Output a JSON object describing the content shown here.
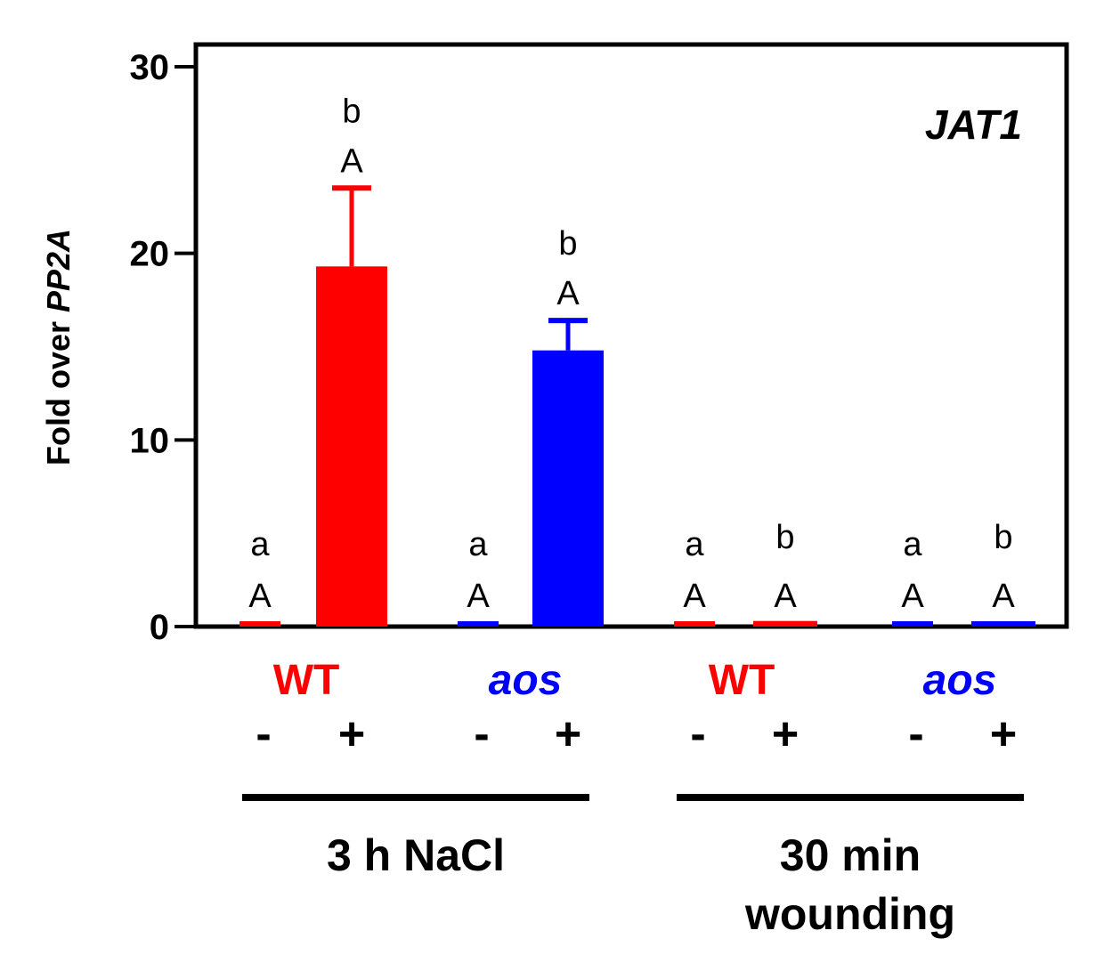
{
  "chart_data": {
    "type": "bar",
    "title": "JAT1",
    "ylabel_prefix": "Fold over ",
    "ylabel_gene": "PP2A",
    "ylim": [
      0,
      30
    ],
    "yticks": [
      "0",
      "10",
      "20",
      "30"
    ],
    "grid": false,
    "bars": [
      {
        "genotype": "WT",
        "treatment": "-",
        "condition": "3 h NaCl",
        "value": 0.2,
        "error": 0,
        "letter_upper": "A",
        "letter_lower": "a",
        "color": "#ff0000"
      },
      {
        "genotype": "WT",
        "treatment": "+",
        "condition": "3 h NaCl",
        "value": 19.3,
        "error": 4.2,
        "letter_upper": "A",
        "letter_lower": "b",
        "color": "#ff0000"
      },
      {
        "genotype": "aos",
        "treatment": "-",
        "condition": "3 h NaCl",
        "value": 0.2,
        "error": 0,
        "letter_upper": "A",
        "letter_lower": "a",
        "color": "#0000ff"
      },
      {
        "genotype": "aos",
        "treatment": "+",
        "condition": "3 h NaCl",
        "value": 14.8,
        "error": 1.6,
        "letter_upper": "A",
        "letter_lower": "b",
        "color": "#0000ff"
      },
      {
        "genotype": "WT",
        "treatment": "-",
        "condition": "30 min wounding",
        "value": 0.1,
        "error": 0,
        "letter_upper": "A",
        "letter_lower": "a",
        "color": "#ff0000"
      },
      {
        "genotype": "WT",
        "treatment": "+",
        "condition": "30 min wounding",
        "value": 0.3,
        "error": 0.2,
        "letter_upper": "A",
        "letter_lower": "b",
        "color": "#ff0000"
      },
      {
        "genotype": "aos",
        "treatment": "-",
        "condition": "30 min wounding",
        "value": 0.1,
        "error": 0,
        "letter_upper": "A",
        "letter_lower": "a",
        "color": "#0000ff"
      },
      {
        "genotype": "aos",
        "treatment": "+",
        "condition": "30 min wounding",
        "value": 0.2,
        "error": 0.2,
        "letter_upper": "A",
        "letter_lower": "b",
        "color": "#0000ff"
      }
    ],
    "genotype_labels": [
      {
        "text": "WT",
        "color": "#ff0000",
        "italic": false
      },
      {
        "text": "aos",
        "color": "#0000ff",
        "italic": true
      },
      {
        "text": "WT",
        "color": "#ff0000",
        "italic": false
      },
      {
        "text": "aos",
        "color": "#0000ff",
        "italic": true
      }
    ],
    "groups": [
      {
        "lines": [
          "3 h NaCl"
        ]
      },
      {
        "lines": [
          "30 min",
          "wounding"
        ]
      }
    ]
  }
}
